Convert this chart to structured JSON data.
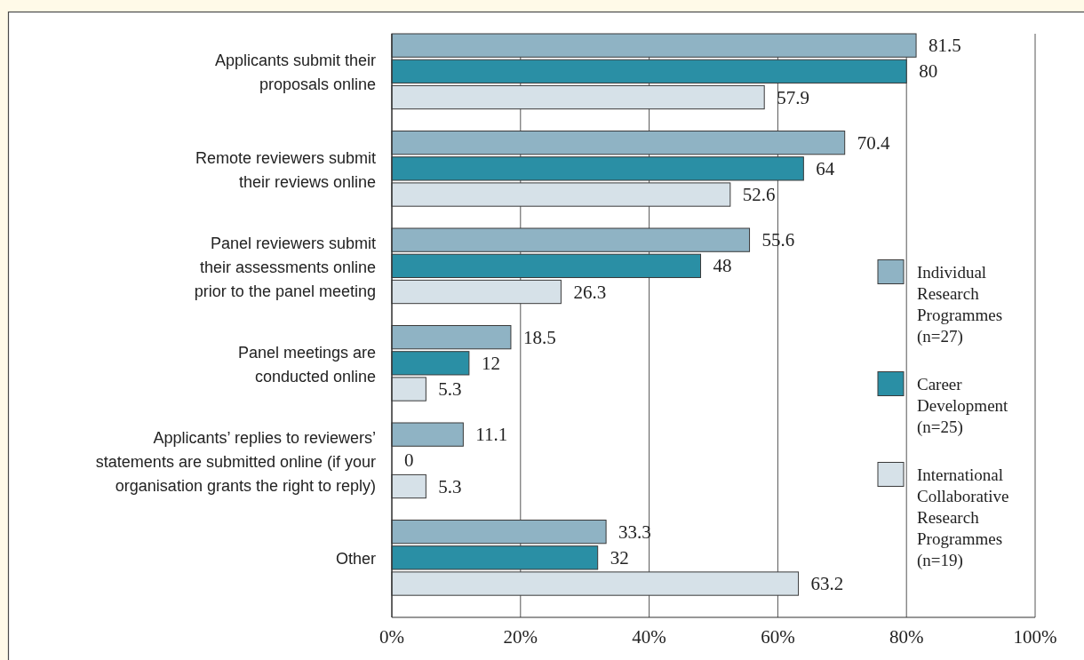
{
  "chart_data": {
    "type": "bar",
    "orientation": "horizontal",
    "categories": [
      "Applicants submit their\nproposals online",
      "Remote reviewers submit\ntheir reviews online",
      "Panel reviewers submit\ntheir assessments online\nprior to the panel meeting",
      "Panel meetings are\nconducted online",
      "Applicants’ replies to reviewers’\nstatements are submitted online (if your\norganisation grants the right to reply)",
      "Other"
    ],
    "series": [
      {
        "name": "Individual Research Programmes (n=27)",
        "color": "#8fb3c4",
        "values": [
          81.5,
          70.4,
          55.6,
          18.5,
          11.1,
          33.3
        ]
      },
      {
        "name": "Career Development (n=25)",
        "color": "#2a8fa5",
        "values": [
          80,
          64,
          48,
          12,
          0,
          32
        ]
      },
      {
        "name": "International Collaborative Research Programmes (n=19)",
        "color": "#d6e1e8",
        "values": [
          57.9,
          52.6,
          26.3,
          5.3,
          5.3,
          63.2
        ]
      }
    ],
    "xlim": [
      0,
      100
    ],
    "xticks": [
      {
        "value": 0,
        "label": "0%"
      },
      {
        "value": 20,
        "label": "20%"
      },
      {
        "value": 40,
        "label": "40%"
      },
      {
        "value": 60,
        "label": "60%"
      },
      {
        "value": 80,
        "label": "80%"
      },
      {
        "value": 100,
        "label": "100%"
      }
    ],
    "data_labels": true,
    "grid": "x",
    "legend": "right"
  }
}
